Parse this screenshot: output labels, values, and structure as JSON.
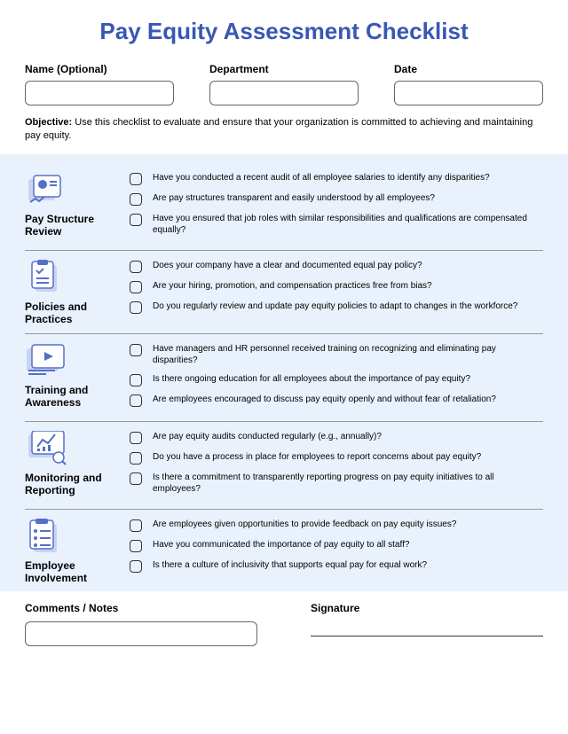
{
  "title": "Pay Equity Assessment Checklist",
  "header": {
    "name_label": "Name (Optional)",
    "dept_label": "Department",
    "date_label": "Date"
  },
  "objective_label": "Objective:",
  "objective_text": "Use this checklist to evaluate and ensure that your organization is committed to achieving and maintaining pay equity.",
  "sections": [
    {
      "title": "Pay Structure Review",
      "items": [
        "Have you conducted a recent audit of all employee salaries to identify any disparities?",
        "Are pay structures transparent and easily understood by all employees?",
        "Have you ensured that job roles with similar responsibilities and qualifications are compensated equally?"
      ]
    },
    {
      "title": "Policies and Practices",
      "items": [
        "Does your company have a clear and documented equal pay policy?",
        "Are your hiring, promotion, and compensation practices free from bias?",
        "Do you regularly review and update pay equity policies to adapt to changes in the workforce?"
      ]
    },
    {
      "title": "Training and Awareness",
      "items": [
        "Have managers and HR personnel received training on recognizing and eliminating pay disparities?",
        "Is there ongoing education for all employees about the importance of pay equity?",
        "Are employees encouraged to discuss pay equity openly and without fear of retaliation?"
      ]
    },
    {
      "title": "Monitoring and Reporting",
      "items": [
        "Are pay equity audits conducted regularly (e.g., annually)?",
        "Do you have a process in place for employees to report concerns about pay equity?",
        "Is there a commitment to transparently reporting progress on pay equity initiatives to all employees?"
      ]
    },
    {
      "title": "Employee Involvement",
      "items": [
        "Are employees given opportunities to provide feedback on pay equity issues?",
        "Have you communicated the importance of pay equity to all staff?",
        "Is there a culture of inclusivity that supports equal pay for equal work?"
      ]
    }
  ],
  "footer": {
    "comments_label": "Comments / Notes",
    "signature_label": "Signature"
  },
  "colors": {
    "title": "#3957b3",
    "section_bg": "#e9f1fc",
    "icon_primary": "#5570c9",
    "icon_light": "#c8d4f0"
  }
}
